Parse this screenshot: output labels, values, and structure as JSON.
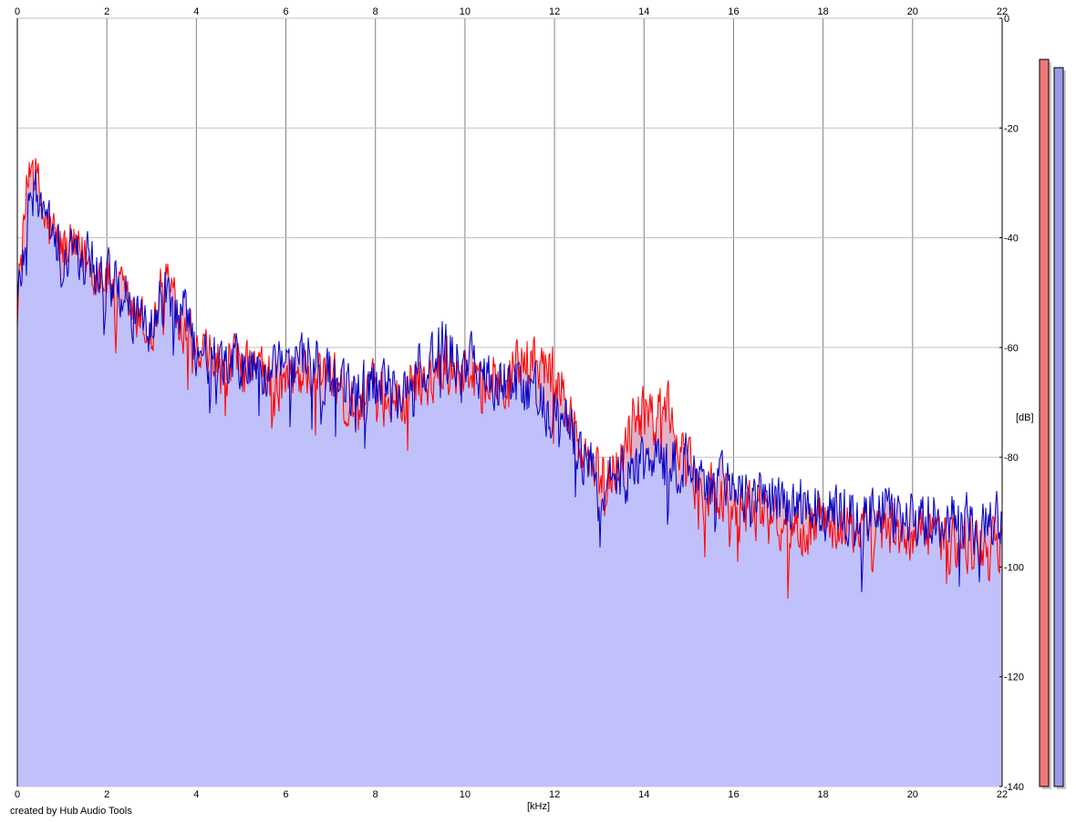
{
  "credit": "created by Hub Audio Tools",
  "chart_data": {
    "type": "area",
    "title": "",
    "xlabel": "[kHz]",
    "ylabel": "[dB]",
    "xlim": [
      0,
      22
    ],
    "ylim": [
      -140,
      0
    ],
    "x_ticks": [
      "0",
      "2",
      "4",
      "6",
      "8",
      "10",
      "12",
      "14",
      "16",
      "18",
      "20",
      "22"
    ],
    "y_ticks": [
      "0",
      "-20",
      "-40",
      "-60",
      "-80",
      "-100",
      "-120",
      "-140"
    ],
    "grid": true,
    "colors": {
      "left": "#ff0000",
      "right": "#0000c8",
      "fill": "#c0c0fa",
      "left_fill": "#f4a8a8",
      "left_meter": "#f07878",
      "right_meter": "#9898e6"
    },
    "series": [
      {
        "channel": "left",
        "x": [
          0,
          0.3,
          0.6,
          1,
          1.5,
          2,
          2.5,
          3,
          3.3,
          3.7,
          4,
          4.5,
          5,
          5.5,
          6,
          6.5,
          7,
          7.5,
          8,
          8.5,
          9,
          9.5,
          10,
          10.5,
          11,
          11.5,
          11.8,
          12.2,
          12.6,
          13,
          13.5,
          13.8,
          14.2,
          14.5,
          14.9,
          15.3,
          16,
          16.5,
          17,
          17.5,
          18,
          18.5,
          19,
          19.5,
          20,
          20.5,
          21,
          21.5,
          22
        ],
        "values": [
          -52,
          -24,
          -37,
          -42,
          -44,
          -47,
          -53,
          -58,
          -47,
          -55,
          -62,
          -63,
          -64,
          -65,
          -67,
          -64,
          -66,
          -72,
          -68,
          -70,
          -66,
          -63,
          -64,
          -66,
          -64,
          -62,
          -63,
          -68,
          -80,
          -84,
          -80,
          -72,
          -74,
          -70,
          -82,
          -86,
          -88,
          -90,
          -91,
          -93,
          -92,
          -93,
          -94,
          -94,
          -95,
          -94,
          -96,
          -96,
          -96
        ]
      },
      {
        "channel": "right",
        "x": [
          0,
          0.3,
          0.6,
          1,
          1.5,
          2,
          2.5,
          3,
          3.3,
          3.7,
          4,
          4.5,
          5,
          5.5,
          6,
          6.5,
          7,
          7.5,
          8,
          8.5,
          9,
          9.5,
          10,
          10.5,
          11,
          11.5,
          11.8,
          12.2,
          12.6,
          13,
          13.5,
          13.8,
          14.2,
          14.5,
          14.9,
          15.3,
          16,
          16.5,
          17,
          17.5,
          18,
          18.5,
          19,
          19.5,
          20,
          20.5,
          21,
          21.5,
          22
        ],
        "values": [
          -52,
          -30,
          -37,
          -42,
          -44,
          -47,
          -52,
          -56,
          -50,
          -54,
          -60,
          -63,
          -63,
          -64,
          -65,
          -62,
          -65,
          -68,
          -66,
          -68,
          -64,
          -60,
          -62,
          -66,
          -66,
          -68,
          -70,
          -72,
          -80,
          -84,
          -84,
          -80,
          -82,
          -82,
          -80,
          -84,
          -86,
          -88,
          -88,
          -89,
          -90,
          -90,
          -90,
          -90,
          -91,
          -91,
          -92,
          -93,
          -92
        ]
      }
    ],
    "meters": [
      {
        "channel": "left",
        "level_db": -7.5
      },
      {
        "channel": "right",
        "level_db": -9
      }
    ]
  }
}
